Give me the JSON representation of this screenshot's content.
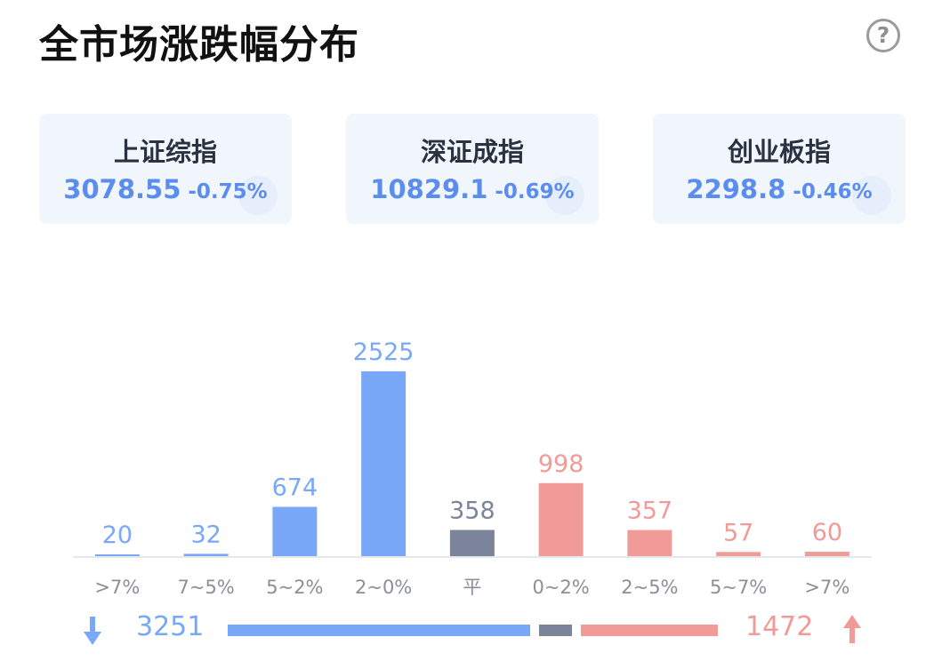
{
  "header": {
    "title": "全市场涨跌幅分布",
    "help_icon": "question-circle-icon"
  },
  "indices": [
    {
      "name": "上证综指",
      "price": "3078.55",
      "change": "-0.75%"
    },
    {
      "name": "深证成指",
      "price": "10829.1",
      "change": "-0.69%"
    },
    {
      "name": "创业板指",
      "price": "2298.8",
      "change": "-0.46%"
    }
  ],
  "colors": {
    "down": "#79a8f8",
    "flat": "#7b849b",
    "up": "#f19b98",
    "index_blue": "#5b8def"
  },
  "chart_data": {
    "type": "bar",
    "categories": [
      ">7%",
      "7~5%",
      "5~2%",
      "2~0%",
      "平",
      "0~2%",
      "2~5%",
      "5~7%",
      ">7%"
    ],
    "values": [
      20,
      32,
      674,
      2525,
      358,
      998,
      357,
      57,
      60
    ],
    "groups": [
      "down",
      "down",
      "down",
      "down",
      "flat",
      "up",
      "up",
      "up",
      "up"
    ],
    "ylim": [
      0,
      2525
    ],
    "grid": false
  },
  "summary": {
    "down_total": "3251",
    "up_total": "1472",
    "flat_total": 358,
    "down_icon": "arrow-down-icon",
    "up_icon": "arrow-up-icon"
  }
}
